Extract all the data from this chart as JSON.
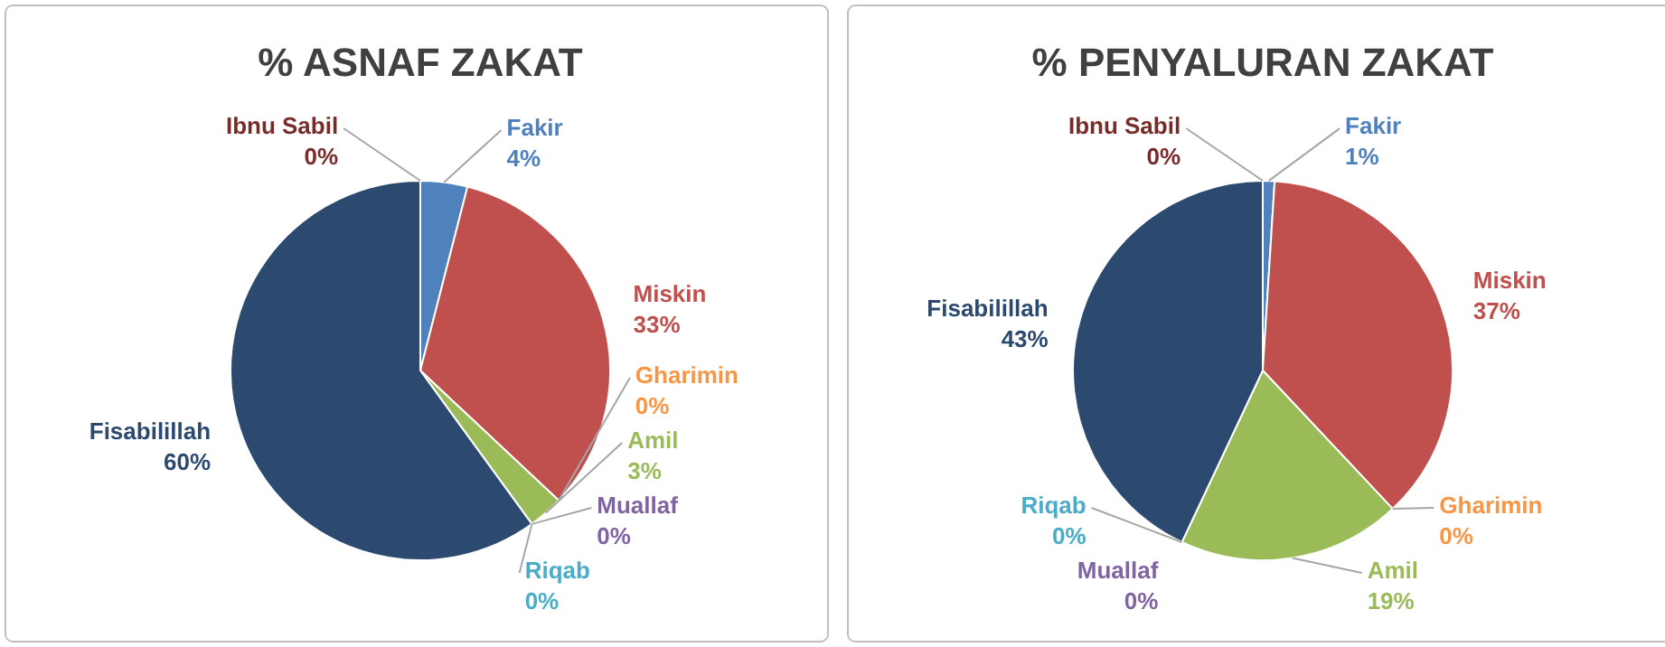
{
  "chart_data": [
    {
      "type": "pie",
      "title": "% ASNAF ZAKAT",
      "categories": [
        "Fakir",
        "Miskin",
        "Gharimin",
        "Amil",
        "Muallaf",
        "Riqab",
        "Fisabilillah",
        "Ibnu Sabil"
      ],
      "values": [
        4,
        33,
        0,
        3,
        0,
        0,
        60,
        0
      ],
      "value_labels": [
        "4%",
        "33%",
        "0%",
        "3%",
        "0%",
        "0%",
        "60%",
        "0%"
      ],
      "colors": [
        "#4f81bd",
        "#c0504d",
        "#f79646",
        "#9bbb59",
        "#8064a2",
        "#4bacc6",
        "#2c4a70",
        "#772c2a"
      ]
    },
    {
      "type": "pie",
      "title": "% PENYALURAN ZAKAT",
      "categories": [
        "Fakir",
        "Miskin",
        "Gharimin",
        "Amil",
        "Riqab",
        "Muallaf",
        "Fisabilillah",
        "Ibnu Sabil"
      ],
      "values": [
        1,
        37,
        0,
        19,
        0,
        0,
        43,
        0
      ],
      "value_labels": [
        "1%",
        "37%",
        "0%",
        "19%",
        "0%",
        "0%",
        "43%",
        "0%"
      ],
      "colors": [
        "#4f81bd",
        "#c0504d",
        "#f79646",
        "#9bbb59",
        "#4bacc6",
        "#8064a2",
        "#2c4a70",
        "#772c2a"
      ]
    }
  ]
}
